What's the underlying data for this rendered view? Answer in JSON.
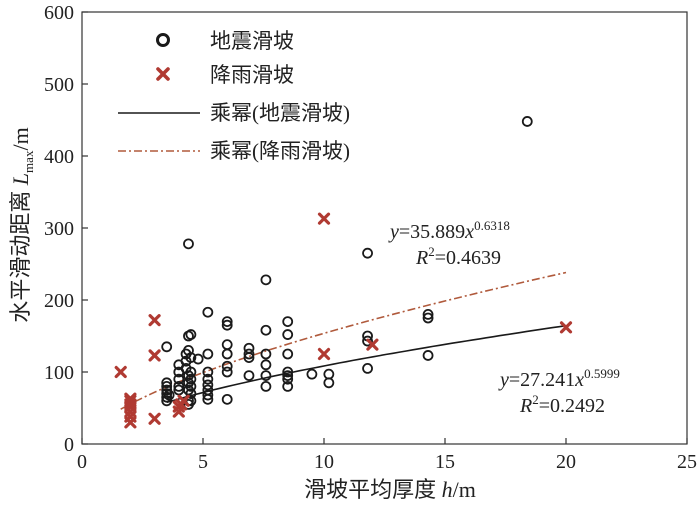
{
  "chart_data": {
    "type": "scatter",
    "xlabel_text": "滑坡平均厚度 ",
    "xlabel_var": "h",
    "xlabel_unit": "/m",
    "ylabel_text": "水平滑动距离 ",
    "ylabel_var": "L",
    "ylabel_sub": "max",
    "ylabel_unit": "/m",
    "xlim": [
      0,
      25
    ],
    "ylim": [
      0,
      600
    ],
    "x_ticks": [
      0,
      5,
      10,
      15,
      20,
      25
    ],
    "y_ticks": [
      0,
      100,
      200,
      300,
      400,
      500,
      600
    ],
    "grid": false,
    "legend_position": "top-left",
    "series": [
      {
        "name": "地震滑坡",
        "marker": "circle",
        "color": "#1a1a1a",
        "x": [
          3.5,
          3.5,
          3.5,
          3.5,
          3.5,
          3.5,
          3.5,
          3.6,
          4.0,
          4.0,
          4.0,
          4.0,
          4.0,
          4.3,
          4.3,
          4.3,
          4.4,
          4.4,
          4.4,
          4.4,
          4.4,
          4.4,
          4.4,
          4.4,
          4.5,
          4.5,
          4.5,
          4.5,
          4.5,
          4.5,
          4.5,
          4.8,
          5.2,
          5.2,
          5.2,
          5.2,
          5.2,
          5.2,
          5.2,
          5.2,
          6.0,
          6.0,
          6.0,
          6.0,
          6.0,
          6.0,
          6.0,
          6.9,
          6.9,
          6.9,
          6.9,
          7.6,
          7.6,
          7.6,
          7.6,
          7.6,
          7.6,
          8.5,
          8.5,
          8.5,
          8.5,
          8.5,
          8.5,
          8.5,
          9.5,
          10.2,
          10.2,
          11.8,
          11.8,
          11.8,
          11.8,
          14.3,
          14.3,
          14.3,
          18.4
        ],
        "y": [
          60,
          65,
          70,
          75,
          80,
          85,
          135,
          68,
          75,
          80,
          90,
          100,
          110,
          105,
          115,
          125,
          55,
          60,
          75,
          85,
          95,
          130,
          150,
          278,
          60,
          70,
          80,
          90,
          100,
          120,
          152,
          118,
          62,
          68,
          75,
          82,
          90,
          100,
          125,
          183,
          62,
          100,
          108,
          125,
          138,
          165,
          170,
          95,
          120,
          125,
          133,
          80,
          95,
          110,
          125,
          158,
          228,
          80,
          90,
          95,
          100,
          125,
          152,
          170,
          97,
          85,
          97,
          105,
          143,
          150,
          265,
          123,
          175,
          180,
          448
        ]
      },
      {
        "name": "降雨滑坡",
        "marker": "x",
        "color": "#b03a32",
        "x": [
          1.6,
          2.0,
          2.0,
          2.0,
          2.0,
          2.0,
          2.0,
          2.0,
          3.0,
          3.0,
          3.0,
          4.0,
          4.0,
          4.1,
          4.2,
          10.0,
          10.0,
          12.0,
          20.0
        ],
        "y": [
          100,
          30,
          38,
          45,
          52,
          55,
          60,
          63,
          35,
          123,
          172,
          45,
          52,
          55,
          60,
          125,
          313,
          138,
          162
        ]
      }
    ],
    "fits": [
      {
        "name": "乘幂(地震滑坡)",
        "a": 27.241,
        "b": 0.5999,
        "x_range": [
          3.5,
          20
        ],
        "style": "solid",
        "color": "#1a1a1a"
      },
      {
        "name": "乘幂(降雨滑坡)",
        "a": 35.889,
        "b": 0.6318,
        "x_range": [
          1.6,
          20
        ],
        "style": "dashdot",
        "color": "#b05a3c"
      }
    ],
    "annotations": [
      {
        "eq_coef": "=35.889",
        "eq_exp": "0.6318",
        "r2": "=0.4639"
      },
      {
        "eq_coef": "=27.241",
        "eq_exp": "0.5999",
        "r2": "=0.2492"
      }
    ]
  }
}
